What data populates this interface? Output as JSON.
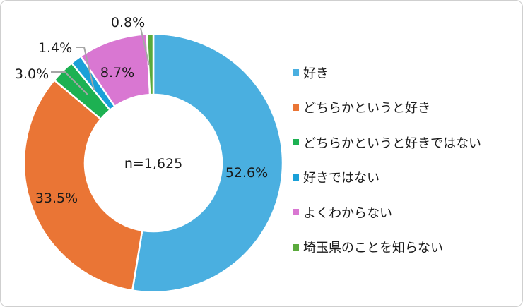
{
  "chart_data": {
    "type": "donut",
    "sample_label": "n=1,625",
    "categories": [
      "好き",
      "どちらかというと好き",
      "どちらかというと好きではない",
      "好きではない",
      "よくわからない",
      "埼玉県のことを知らない"
    ],
    "values": [
      52.6,
      33.5,
      3.0,
      1.4,
      8.7,
      0.8
    ],
    "value_labels": [
      "52.6%",
      "33.5%",
      "3.0%",
      "1.4%",
      "8.7%",
      "0.8%"
    ],
    "colors": [
      "#4aafe0",
      "#ea7535",
      "#1db152",
      "#1aa0d8",
      "#d977d2",
      "#5aaa3c"
    ],
    "legend_position": "right",
    "order": "clockwise from top"
  }
}
